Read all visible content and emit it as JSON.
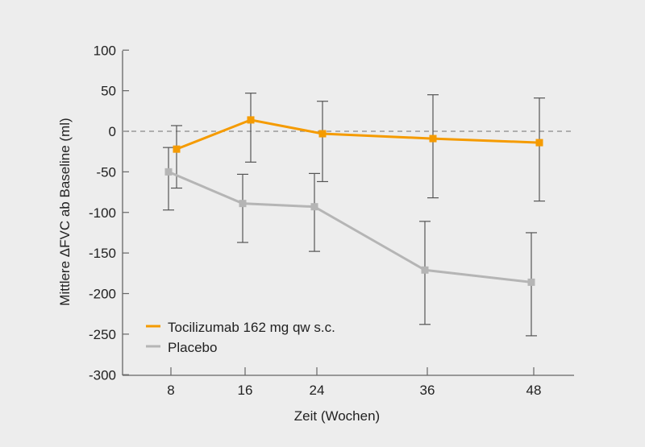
{
  "chart_data": {
    "type": "line",
    "title": "",
    "xlabel": "Zeit (Wochen)",
    "ylabel": "Mittlere ΔFVC ab Baseline (ml)",
    "x": [
      8,
      16,
      24,
      36,
      48
    ],
    "xticks": [
      "8",
      "16",
      "24",
      "36",
      "48"
    ],
    "yticks": [
      "100",
      "50",
      "0",
      "-50",
      "-100",
      "-150",
      "-200",
      "-250",
      "-300"
    ],
    "ylim": [
      -300,
      100
    ],
    "xlim": [
      2.5,
      53
    ],
    "grid": false,
    "reference_line": {
      "y": 0,
      "style": "dashed"
    },
    "legend_position": "lower left",
    "series": [
      {
        "name": "Tocilizumab 162 mg qw s.c.",
        "color": "#f59b00",
        "values": [
          -22,
          14,
          -3,
          -9,
          -14
        ],
        "error_upper": [
          7,
          47,
          37,
          45,
          41
        ],
        "error_lower": [
          -70,
          -38,
          -62,
          -82,
          -86
        ],
        "marker": "square"
      },
      {
        "name": "Placebo",
        "color": "#b5b5b5",
        "values": [
          -50,
          -89,
          -93,
          -171,
          -186
        ],
        "error_upper": [
          -20,
          -53,
          -52,
          -111,
          -125
        ],
        "error_lower": [
          -97,
          -137,
          -148,
          -238,
          -252
        ],
        "marker": "square"
      }
    ]
  },
  "legend": {
    "items": [
      {
        "label": "Tocilizumab 162 mg qw s.c.",
        "color": "#f59b00"
      },
      {
        "label": "Placebo",
        "color": "#b5b5b5"
      }
    ]
  },
  "axes": {
    "xlabel": "Zeit (Wochen)",
    "ylabel": "Mittlere ΔFVC ab Baseline (ml)"
  }
}
